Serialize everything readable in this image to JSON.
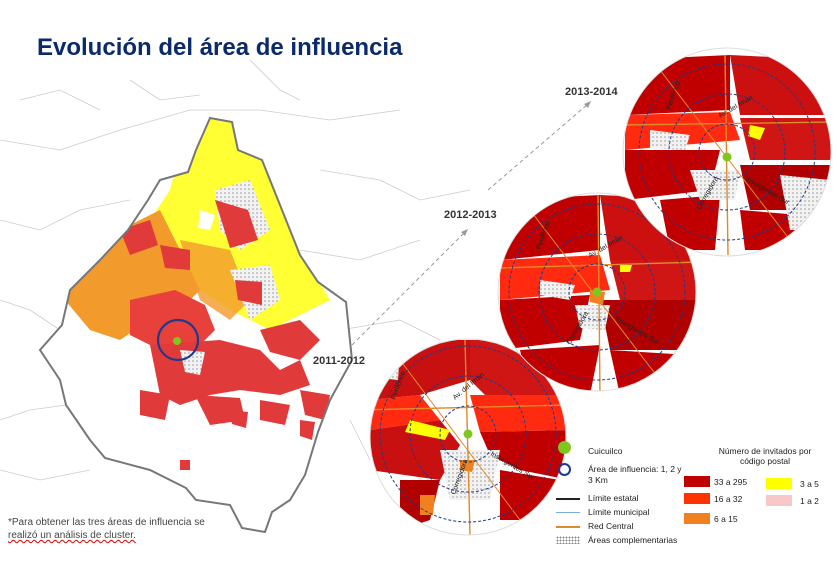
{
  "title": "Evolución del área de influencia",
  "periods": [
    "2013-2014",
    "2012-2013",
    "2011-2012"
  ],
  "footnote": {
    "text": "*Para obtener las tres áreas de influencia se ",
    "underlined": "realizó un análisis de cluster."
  },
  "street_labels": [
    "Insurgentes Sur",
    "Periférico",
    "Av. del Imán",
    "Tlalpan",
    "Insurgentes",
    "Corregidora",
    "Santa Teresa"
  ],
  "legend": {
    "col1_title": "Cuicuilco",
    "col2_title": "Número de invitados por código postal",
    "area_label": "Área de influencia: 1, 2 y 3 Km",
    "lines": [
      "Límite estatal",
      "Límite municipal",
      "Red Central"
    ],
    "complement": "Áreas complementarias",
    "ranges": [
      {
        "label": "33 a 295",
        "color": "#c00000"
      },
      {
        "label": "16 a 32",
        "color": "#ff3300"
      },
      {
        "label": "6 a 15",
        "color": "#f08020"
      },
      {
        "label": "3 a 5",
        "color": "#ffff00"
      },
      {
        "label": "1 a 2",
        "color": "#f8c8c8"
      }
    ],
    "line_colors": {
      "estatal": "#222222",
      "municipal": "#7ab0d8",
      "red": "#e08a2a"
    },
    "dot_color": "#7ec81e",
    "ring_color": "#1f3a8a"
  }
}
